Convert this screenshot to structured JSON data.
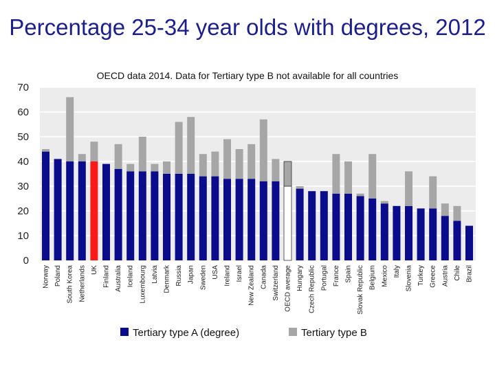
{
  "chart_data": {
    "type": "bar",
    "title": "Percentage 25-34 year olds with degrees, 2012",
    "subtitle": "OECD data 2014. Data for Tertiary type B not available for all countries",
    "ylim": [
      0,
      70
    ],
    "yticks": [
      0,
      10,
      20,
      30,
      40,
      50,
      60,
      70
    ],
    "grid": true,
    "stacked": true,
    "legend_position": "bottom",
    "categories": [
      "Norway",
      "Poland",
      "South Korea",
      "Netherlands",
      "UK",
      "Finland",
      "Australia",
      "Iceland",
      "Luxembourg",
      "Latvia",
      "Denmark",
      "Russia",
      "Japan",
      "Sweden",
      "USA",
      "Ireland",
      "Israel",
      "New Zealand",
      "Canada",
      "Switzerland",
      "OECD average",
      "Hungary",
      "Czech Republic",
      "Portugal",
      "France",
      "Spain",
      "Slovak Republic",
      "Belgium",
      "Mexico",
      "Italy",
      "Slovenia",
      "Turkey",
      "Greece",
      "Austria",
      "Chile",
      "Brazil"
    ],
    "series": [
      {
        "name": "Tertiary type A (degree)",
        "color": "#0b0c8c",
        "values": [
          44,
          41,
          40,
          40,
          40,
          39,
          37,
          36,
          36,
          36,
          35,
          35,
          35,
          34,
          34,
          33,
          33,
          33,
          32,
          32,
          30,
          29,
          28,
          28,
          27,
          27,
          26,
          25,
          23,
          22,
          22,
          21,
          21,
          18,
          16,
          14
        ]
      },
      {
        "name": "Tertiary type B",
        "color": "#a6a6a6",
        "values": [
          1,
          0,
          26,
          3,
          8,
          0,
          10,
          3,
          14,
          3,
          5,
          21,
          23,
          9,
          10,
          16,
          12,
          14,
          25,
          9,
          10,
          1,
          0,
          0,
          16,
          13,
          1,
          18,
          1,
          0,
          14,
          0,
          13,
          5,
          6,
          0
        ]
      }
    ],
    "highlight": {
      "UK": "#ff1a1a",
      "OECD average": "#ffffff"
    }
  }
}
